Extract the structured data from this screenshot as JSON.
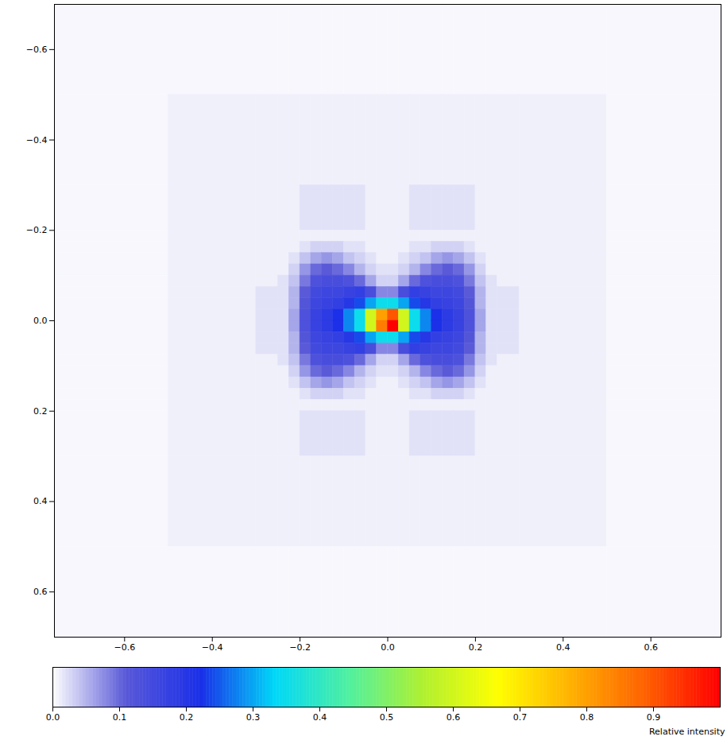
{
  "chart_data": {
    "type": "heatmap",
    "xlim": [
      -0.76,
      0.76
    ],
    "ylim": [
      -0.7,
      0.7
    ],
    "xticks": [
      -0.6,
      -0.4,
      -0.2,
      0,
      0.2,
      0.4,
      0.6
    ],
    "yticks": [
      -0.6,
      -0.4,
      -0.2,
      0,
      0.2,
      0.4,
      0.6
    ],
    "heatmap": {
      "x_edges": [
        -0.76,
        -0.5,
        -0.3,
        -0.25,
        -0.225,
        -0.2,
        -0.175,
        -0.15,
        -0.125,
        -0.1,
        -0.075,
        -0.05,
        -0.025,
        0,
        0.025,
        0.05,
        0.075,
        0.1,
        0.125,
        0.15,
        0.175,
        0.2,
        0.225,
        0.25,
        0.3,
        0.5,
        0.76
      ],
      "y_edges": [
        -0.7,
        -0.5,
        -0.3,
        -0.2,
        -0.175,
        -0.15,
        -0.125,
        -0.1,
        -0.075,
        -0.05,
        -0.025,
        0,
        0.025,
        0.05,
        0.075,
        0.1,
        0.125,
        0.15,
        0.175,
        0.2,
        0.3,
        0.5,
        0.7
      ],
      "cells": [
        [
          0.005,
          0.005,
          0.005,
          0.005,
          0.005,
          0.005,
          0.005,
          0.005,
          0.005,
          0.005,
          0.005,
          0.005,
          0.005,
          0.005,
          0.005,
          0.005,
          0.005,
          0.005,
          0.005,
          0.005,
          0.005,
          0.005,
          0.005,
          0.005,
          0.005,
          0.005
        ],
        [
          0.005,
          0.01,
          0.01,
          0.01,
          0.01,
          0.01,
          0.01,
          0.01,
          0.01,
          0.01,
          0.01,
          0.01,
          0.01,
          0.01,
          0.01,
          0.01,
          0.01,
          0.01,
          0.01,
          0.01,
          0.01,
          0.01,
          0.01,
          0.01,
          0.01,
          0.005
        ],
        [
          0.005,
          0.01,
          0.01,
          0.01,
          0.01,
          0.02,
          0.02,
          0.02,
          0.02,
          0.02,
          0.02,
          0.01,
          0.01,
          0.01,
          0.01,
          0.02,
          0.02,
          0.02,
          0.02,
          0.02,
          0.02,
          0.01,
          0.01,
          0.01,
          0.01,
          0.005
        ],
        [
          0.005,
          0.01,
          0.01,
          0.01,
          0.01,
          0.01,
          0.01,
          0.01,
          0.01,
          0.01,
          0.01,
          0.01,
          0.01,
          0.01,
          0.01,
          0.01,
          0.01,
          0.01,
          0.01,
          0.01,
          0.01,
          0.01,
          0.01,
          0.01,
          0.01,
          0.005
        ],
        [
          0.005,
          0.01,
          0.01,
          0.01,
          0.01,
          0.02,
          0.03,
          0.03,
          0.03,
          0.02,
          0.02,
          0.01,
          0.01,
          0.01,
          0.01,
          0.02,
          0.02,
          0.03,
          0.03,
          0.03,
          0.02,
          0.01,
          0.01,
          0.01,
          0.01,
          0.005
        ],
        [
          0.005,
          0.01,
          0.01,
          0.01,
          0.02,
          0.04,
          0.06,
          0.07,
          0.06,
          0.04,
          0.03,
          0.02,
          0.01,
          0.01,
          0.02,
          0.03,
          0.04,
          0.06,
          0.07,
          0.06,
          0.04,
          0.02,
          0.01,
          0.01,
          0.01,
          0.005
        ],
        [
          0.005,
          0.01,
          0.01,
          0.01,
          0.03,
          0.07,
          0.1,
          0.11,
          0.1,
          0.08,
          0.05,
          0.03,
          0.02,
          0.02,
          0.03,
          0.05,
          0.08,
          0.1,
          0.11,
          0.1,
          0.07,
          0.03,
          0.01,
          0.01,
          0.01,
          0.005
        ],
        [
          0.005,
          0.01,
          0.01,
          0.02,
          0.04,
          0.09,
          0.13,
          0.14,
          0.14,
          0.13,
          0.1,
          0.06,
          0.03,
          0.03,
          0.06,
          0.1,
          0.13,
          0.14,
          0.14,
          0.13,
          0.09,
          0.04,
          0.02,
          0.01,
          0.01,
          0.005
        ],
        [
          0.005,
          0.01,
          0.02,
          0.02,
          0.05,
          0.11,
          0.15,
          0.16,
          0.16,
          0.17,
          0.18,
          0.14,
          0.08,
          0.08,
          0.14,
          0.18,
          0.17,
          0.16,
          0.16,
          0.15,
          0.11,
          0.05,
          0.02,
          0.02,
          0.01,
          0.005
        ],
        [
          0.005,
          0.01,
          0.02,
          0.02,
          0.05,
          0.12,
          0.16,
          0.17,
          0.18,
          0.2,
          0.24,
          0.3,
          0.35,
          0.35,
          0.3,
          0.24,
          0.2,
          0.18,
          0.17,
          0.16,
          0.12,
          0.05,
          0.02,
          0.02,
          0.01,
          0.005
        ],
        [
          0.005,
          0.01,
          0.02,
          0.02,
          0.06,
          0.13,
          0.17,
          0.19,
          0.22,
          0.28,
          0.35,
          0.6,
          0.8,
          0.9,
          0.6,
          0.35,
          0.28,
          0.22,
          0.19,
          0.17,
          0.13,
          0.06,
          0.02,
          0.02,
          0.01,
          0.005
        ],
        [
          0.005,
          0.01,
          0.02,
          0.02,
          0.06,
          0.13,
          0.17,
          0.19,
          0.22,
          0.28,
          0.35,
          0.6,
          0.85,
          1,
          0.6,
          0.35,
          0.28,
          0.22,
          0.19,
          0.17,
          0.13,
          0.06,
          0.02,
          0.02,
          0.01,
          0.005
        ],
        [
          0.005,
          0.01,
          0.02,
          0.02,
          0.05,
          0.12,
          0.16,
          0.17,
          0.18,
          0.2,
          0.24,
          0.3,
          0.35,
          0.35,
          0.3,
          0.24,
          0.2,
          0.18,
          0.17,
          0.16,
          0.12,
          0.05,
          0.02,
          0.02,
          0.01,
          0.005
        ],
        [
          0.005,
          0.01,
          0.02,
          0.02,
          0.05,
          0.11,
          0.15,
          0.16,
          0.16,
          0.17,
          0.18,
          0.14,
          0.08,
          0.08,
          0.14,
          0.18,
          0.17,
          0.16,
          0.16,
          0.15,
          0.11,
          0.05,
          0.02,
          0.02,
          0.01,
          0.005
        ],
        [
          0.005,
          0.01,
          0.01,
          0.02,
          0.04,
          0.09,
          0.13,
          0.14,
          0.14,
          0.13,
          0.1,
          0.06,
          0.03,
          0.03,
          0.06,
          0.1,
          0.13,
          0.14,
          0.14,
          0.13,
          0.09,
          0.04,
          0.02,
          0.01,
          0.01,
          0.005
        ],
        [
          0.005,
          0.01,
          0.01,
          0.01,
          0.03,
          0.07,
          0.1,
          0.11,
          0.1,
          0.08,
          0.05,
          0.03,
          0.02,
          0.02,
          0.03,
          0.05,
          0.08,
          0.1,
          0.11,
          0.1,
          0.07,
          0.03,
          0.01,
          0.01,
          0.01,
          0.005
        ],
        [
          0.005,
          0.01,
          0.01,
          0.01,
          0.02,
          0.04,
          0.06,
          0.07,
          0.06,
          0.04,
          0.03,
          0.02,
          0.01,
          0.01,
          0.02,
          0.03,
          0.04,
          0.06,
          0.07,
          0.06,
          0.04,
          0.02,
          0.01,
          0.01,
          0.01,
          0.005
        ],
        [
          0.005,
          0.01,
          0.01,
          0.01,
          0.01,
          0.02,
          0.03,
          0.03,
          0.03,
          0.02,
          0.02,
          0.01,
          0.01,
          0.01,
          0.01,
          0.02,
          0.02,
          0.03,
          0.03,
          0.03,
          0.02,
          0.01,
          0.01,
          0.01,
          0.01,
          0.005
        ],
        [
          0.005,
          0.01,
          0.01,
          0.01,
          0.01,
          0.01,
          0.01,
          0.01,
          0.01,
          0.01,
          0.01,
          0.01,
          0.01,
          0.01,
          0.01,
          0.01,
          0.01,
          0.01,
          0.01,
          0.01,
          0.01,
          0.01,
          0.01,
          0.01,
          0.01,
          0.005
        ],
        [
          0.005,
          0.01,
          0.01,
          0.01,
          0.01,
          0.02,
          0.02,
          0.02,
          0.02,
          0.02,
          0.02,
          0.01,
          0.01,
          0.01,
          0.01,
          0.02,
          0.02,
          0.02,
          0.02,
          0.02,
          0.02,
          0.01,
          0.01,
          0.01,
          0.01,
          0.005
        ],
        [
          0.005,
          0.01,
          0.01,
          0.01,
          0.01,
          0.01,
          0.01,
          0.01,
          0.01,
          0.01,
          0.01,
          0.01,
          0.01,
          0.01,
          0.01,
          0.01,
          0.01,
          0.01,
          0.01,
          0.01,
          0.01,
          0.01,
          0.01,
          0.01,
          0.01,
          0.005
        ],
        [
          0.005,
          0.005,
          0.005,
          0.005,
          0.005,
          0.005,
          0.005,
          0.005,
          0.005,
          0.005,
          0.005,
          0.005,
          0.005,
          0.005,
          0.005,
          0.005,
          0.005,
          0.005,
          0.005,
          0.005,
          0.005,
          0.005,
          0.005,
          0.005,
          0.005,
          0.005
        ]
      ]
    },
    "colorbar": {
      "range": [
        0,
        1
      ],
      "ticks": [
        0,
        0.1,
        0.2,
        0.3,
        0.4,
        0.5,
        0.6,
        0.7,
        0.8,
        0.9
      ],
      "label": "Relative intensity"
    }
  }
}
